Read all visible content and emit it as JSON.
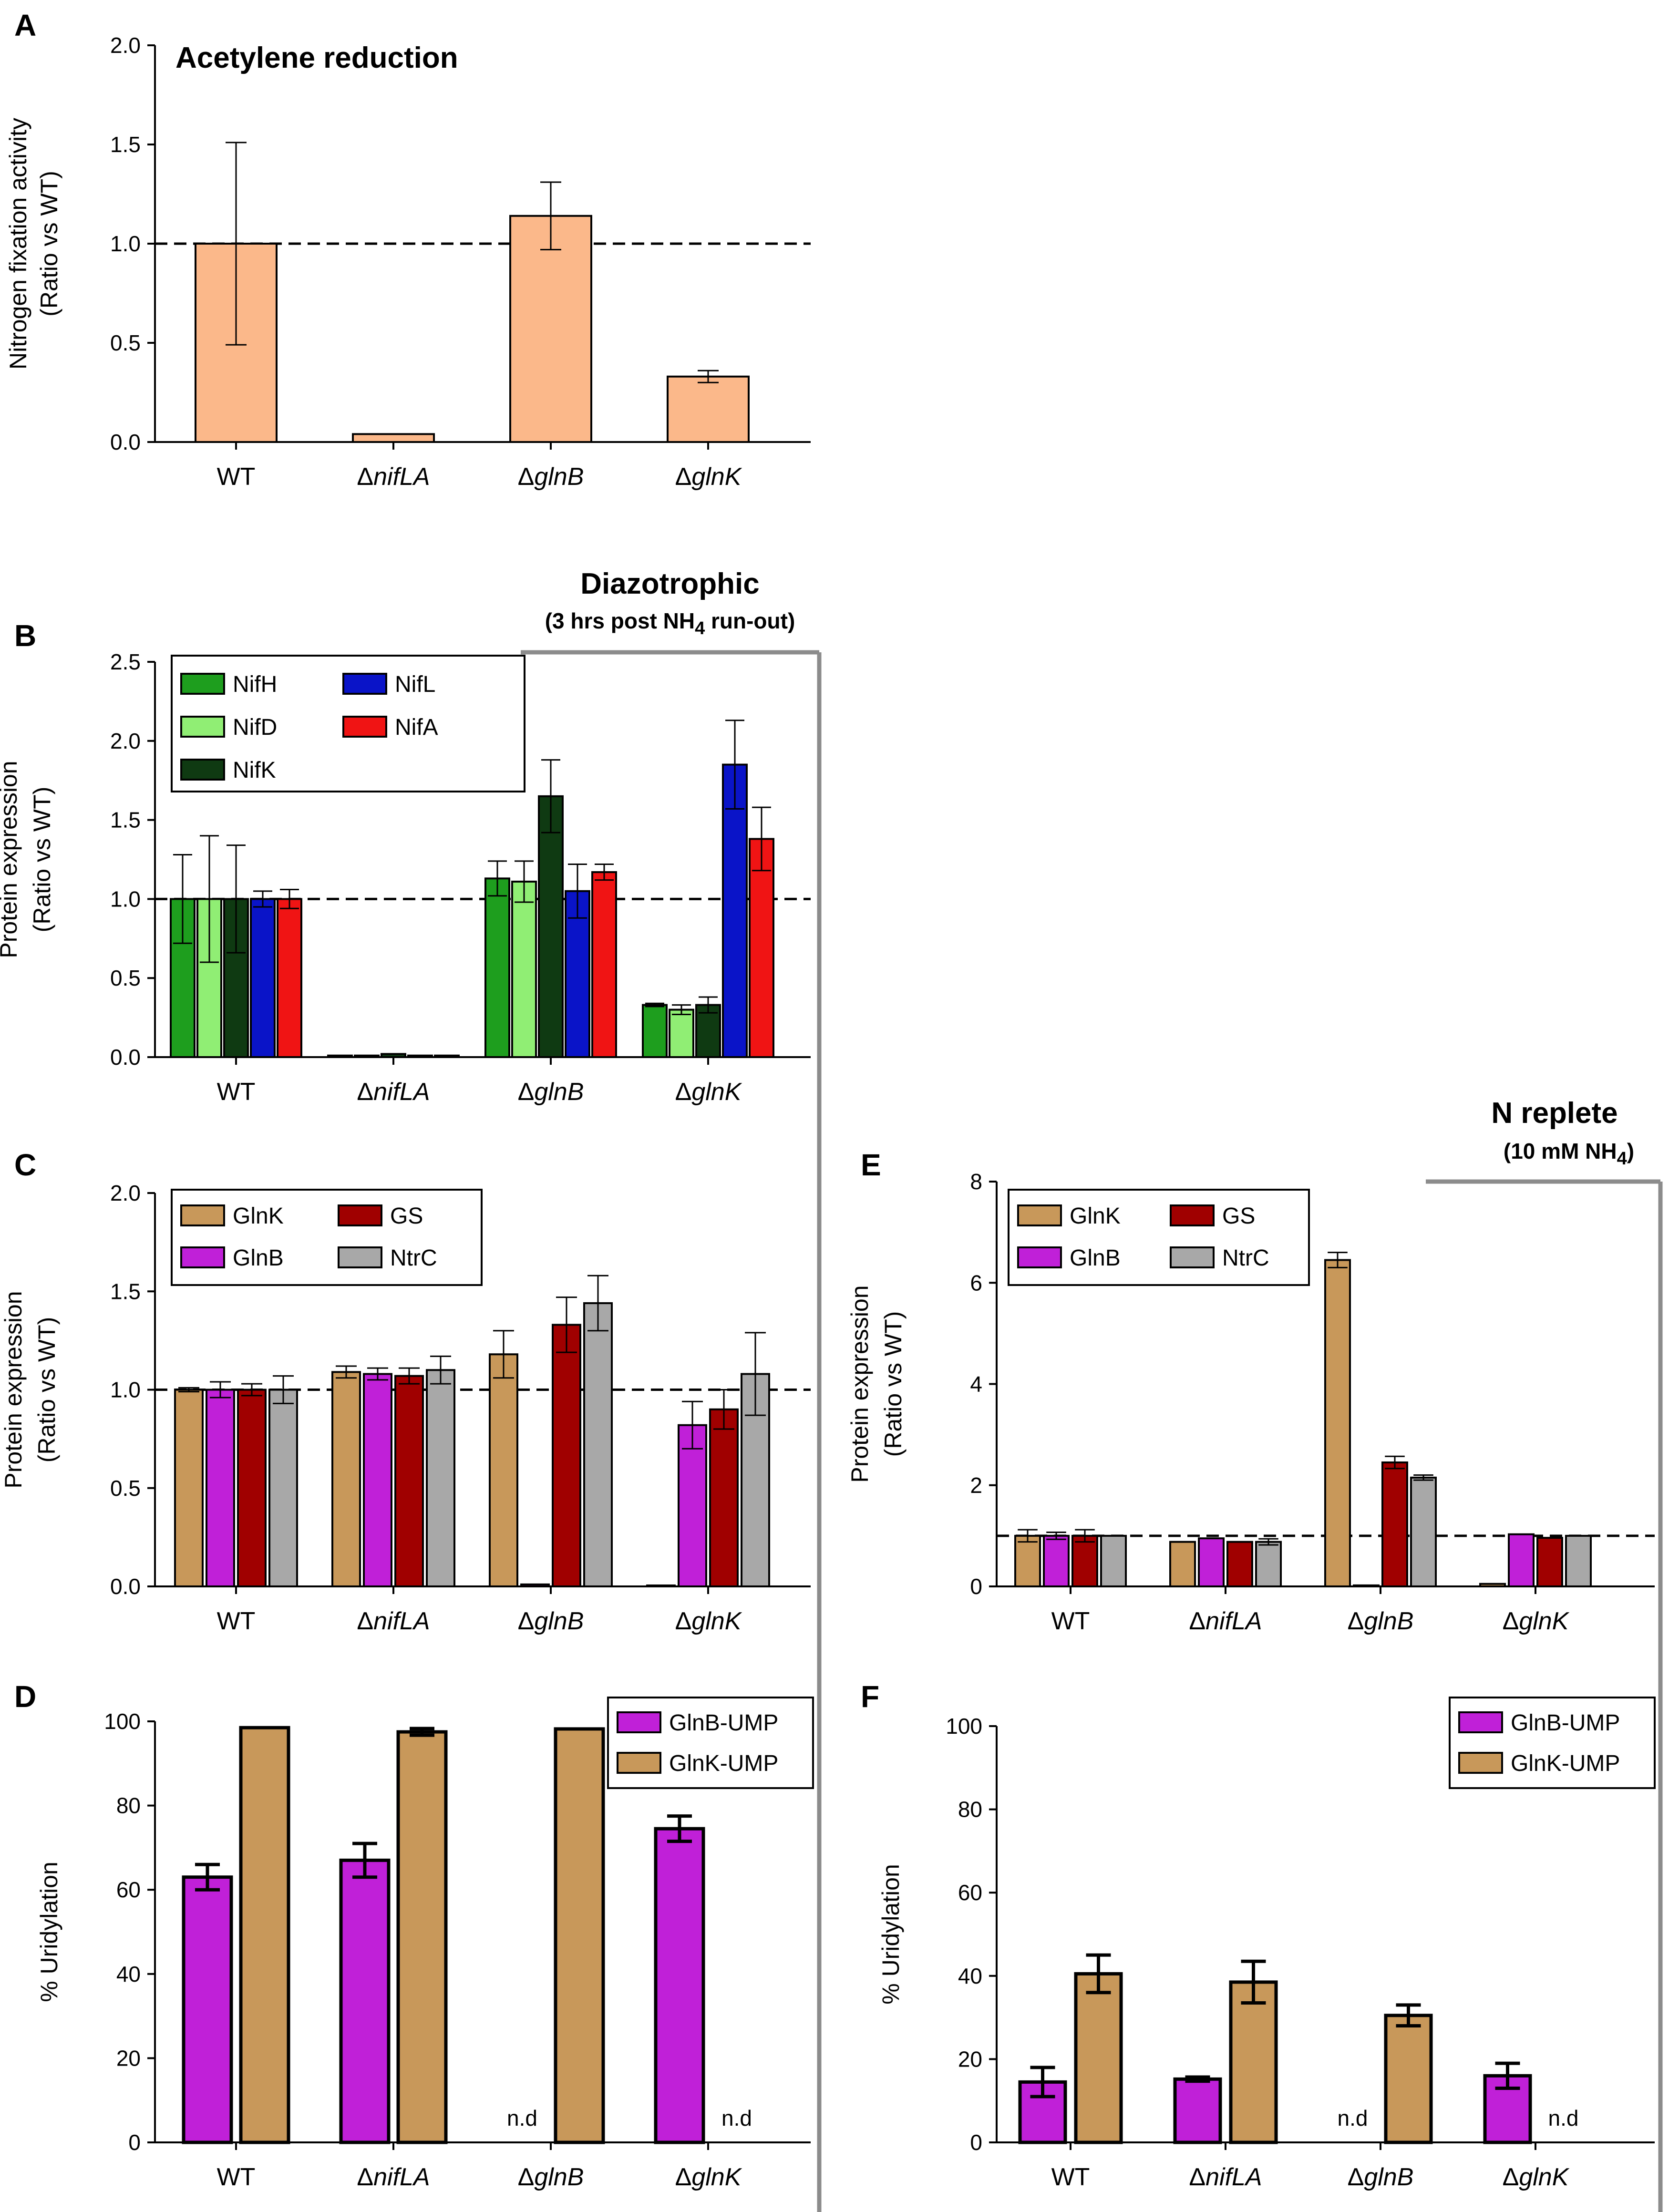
{
  "figure": {
    "condition_left": {
      "title": "Diazotrophic",
      "subtitle": "(3 hrs post NH",
      "subscript": "4",
      "subtitle_end": " run-out)"
    },
    "condition_right": {
      "title": "N replete",
      "subtitle": "(10 mM NH",
      "subscript": "4",
      "subtitle_end": ")"
    },
    "nd_text": "n.d"
  },
  "colors": {
    "acetylene": "#FBB88A",
    "NifH": "#1E9E1E",
    "NifD": "#90EE74",
    "NifK": "#0F3A12",
    "NifL": "#0A14C8",
    "NifA": "#F01414",
    "GlnK": "#C8985A",
    "GlnB": "#C020D8",
    "GS": "#A00000",
    "NtrC": "#A8A8A8",
    "dashed": "#000000",
    "divider": "#8C8C8C"
  },
  "chart_data": [
    {
      "id": "A",
      "letter": "A",
      "type": "bar",
      "title": "Acetylene reduction",
      "ylabel_lines": [
        "Nitrogen fixation activity",
        "(Ratio vs  WT)"
      ],
      "categories": [
        "WT",
        "nifLA",
        "glnB",
        "glnK"
      ],
      "category_prefix": "Δ",
      "ylim": [
        0,
        2.0
      ],
      "yticks": [
        "0.0",
        "0.5",
        "1.0",
        "1.5",
        "2.0"
      ],
      "reference_line": 1.0,
      "series": [
        {
          "name": "Nitrogen fixation activity",
          "color_key": "acetylene",
          "values": [
            1.0,
            0.04,
            1.14,
            0.33
          ],
          "errors": [
            0.51,
            0,
            0.17,
            0.03
          ]
        }
      ]
    },
    {
      "id": "B",
      "letter": "B",
      "type": "bar",
      "ylabel_lines": [
        "Protein expression",
        "(Ratio vs  WT)"
      ],
      "categories": [
        "WT",
        "nifLA",
        "glnB",
        "glnK"
      ],
      "category_prefix": "Δ",
      "ylim": [
        0,
        2.5
      ],
      "yticks": [
        "0.0",
        "0.5",
        "1.0",
        "1.5",
        "2.0",
        "2.5"
      ],
      "reference_line": 1.0,
      "legend": [
        "NifH",
        "NifD",
        "NifK",
        "NifL",
        "NifA"
      ],
      "series": [
        {
          "name": "NifH",
          "color_key": "NifH",
          "values": [
            1.0,
            0.01,
            1.13,
            0.33
          ],
          "errors": [
            0.28,
            0,
            0.11,
            0.01
          ]
        },
        {
          "name": "NifD",
          "color_key": "NifD",
          "values": [
            1.0,
            0.01,
            1.11,
            0.3
          ],
          "errors": [
            0.4,
            0,
            0.13,
            0.03
          ]
        },
        {
          "name": "NifK",
          "color_key": "NifK",
          "values": [
            1.0,
            0.02,
            1.65,
            0.33
          ],
          "errors": [
            0.34,
            0,
            0.23,
            0.05
          ]
        },
        {
          "name": "NifL",
          "color_key": "NifL",
          "values": [
            1.0,
            0.01,
            1.05,
            1.85
          ],
          "errors": [
            0.05,
            0,
            0.17,
            0.28
          ]
        },
        {
          "name": "NifA",
          "color_key": "NifA",
          "values": [
            1.0,
            0.01,
            1.17,
            1.38
          ],
          "errors": [
            0.06,
            0,
            0.05,
            0.2
          ]
        }
      ]
    },
    {
      "id": "C",
      "letter": "C",
      "type": "bar",
      "ylabel_lines": [
        "Protein expression",
        "(Ratio vs  WT)"
      ],
      "categories": [
        "WT",
        "nifLA",
        "glnB",
        "glnK"
      ],
      "category_prefix": "Δ",
      "ylim": [
        0,
        2.0
      ],
      "yticks": [
        "0.0",
        "0.5",
        "1.0",
        "1.5",
        "2.0"
      ],
      "reference_line": 1.0,
      "legend": [
        "GlnK",
        "GS",
        "GlnB",
        "NtrC"
      ],
      "series": [
        {
          "name": "GlnK",
          "color_key": "GlnK",
          "values": [
            1.0,
            1.09,
            1.18,
            0.0
          ],
          "errors": [
            0.01,
            0.03,
            0.12,
            0
          ]
        },
        {
          "name": "GlnB",
          "color_key": "GlnB",
          "values": [
            1.0,
            1.08,
            0.01,
            0.82
          ],
          "errors": [
            0.04,
            0.03,
            0,
            0.12
          ]
        },
        {
          "name": "GS",
          "color_key": "GS",
          "values": [
            1.0,
            1.07,
            1.33,
            0.9
          ],
          "errors": [
            0.03,
            0.04,
            0.14,
            0.1
          ]
        },
        {
          "name": "NtrC",
          "color_key": "NtrC",
          "values": [
            1.0,
            1.1,
            1.44,
            1.08
          ],
          "errors": [
            0.07,
            0.07,
            0.14,
            0.21
          ]
        }
      ]
    },
    {
      "id": "D",
      "letter": "D",
      "type": "bar",
      "ylabel_lines": [
        "% Uridylation"
      ],
      "categories": [
        "WT",
        "nifLA",
        "glnB",
        "glnK"
      ],
      "category_prefix": "Δ",
      "ylim": [
        0,
        100
      ],
      "yticks": [
        "0",
        "20",
        "40",
        "60",
        "80",
        "100"
      ],
      "legend": [
        "GlnB-UMP",
        "GlnK-UMP"
      ],
      "series": [
        {
          "name": "GlnB-UMP",
          "color_key": "GlnB",
          "values": [
            63,
            67,
            null,
            74.5
          ],
          "errors": [
            3,
            4,
            0,
            3
          ]
        },
        {
          "name": "GlnK-UMP",
          "color_key": "GlnK",
          "values": [
            98.5,
            97.5,
            98.2,
            null
          ],
          "errors": [
            0,
            0.8,
            0,
            0
          ]
        }
      ]
    },
    {
      "id": "E",
      "letter": "E",
      "type": "bar",
      "ylabel_lines": [
        "Protein expression",
        "(Ratio vs  WT)"
      ],
      "categories": [
        "WT",
        "nifLA",
        "glnB",
        "glnK"
      ],
      "category_prefix": "Δ",
      "ylim": [
        0,
        8
      ],
      "yticks": [
        "0",
        "2",
        "4",
        "6",
        "8"
      ],
      "reference_line": 1.0,
      "legend": [
        "GlnK",
        "GS",
        "GlnB",
        "NtrC"
      ],
      "series": [
        {
          "name": "GlnK",
          "color_key": "GlnK",
          "values": [
            1.0,
            0.88,
            6.45,
            0.05
          ],
          "errors": [
            0.12,
            0,
            0.15,
            0
          ]
        },
        {
          "name": "GlnB",
          "color_key": "GlnB",
          "values": [
            1.0,
            0.95,
            0.02,
            1.03
          ],
          "errors": [
            0.07,
            0,
            0,
            0
          ]
        },
        {
          "name": "GS",
          "color_key": "GS",
          "values": [
            1.0,
            0.88,
            2.45,
            0.96
          ],
          "errors": [
            0.12,
            0,
            0.12,
            0
          ]
        },
        {
          "name": "NtrC",
          "color_key": "NtrC",
          "values": [
            1.0,
            0.88,
            2.15,
            1.0
          ],
          "errors": [
            0,
            0.06,
            0.05,
            0
          ]
        }
      ]
    },
    {
      "id": "F",
      "letter": "F",
      "type": "bar",
      "ylabel_lines": [
        "% Uridylation"
      ],
      "categories": [
        "WT",
        "nifLA",
        "glnB",
        "glnK"
      ],
      "category_prefix": "Δ",
      "ylim": [
        0,
        100
      ],
      "yticks": [
        "0",
        "20",
        "40",
        "60",
        "80",
        "100"
      ],
      "legend": [
        "GlnB-UMP",
        "GlnK-UMP"
      ],
      "series": [
        {
          "name": "GlnB-UMP",
          "color_key": "GlnB",
          "values": [
            14.5,
            15.2,
            null,
            16
          ],
          "errors": [
            3.5,
            0.5,
            0,
            3
          ]
        },
        {
          "name": "GlnK-UMP",
          "color_key": "GlnK",
          "values": [
            40.5,
            38.5,
            30.5,
            null
          ],
          "errors": [
            4.5,
            5,
            2.5,
            0
          ]
        }
      ]
    }
  ]
}
